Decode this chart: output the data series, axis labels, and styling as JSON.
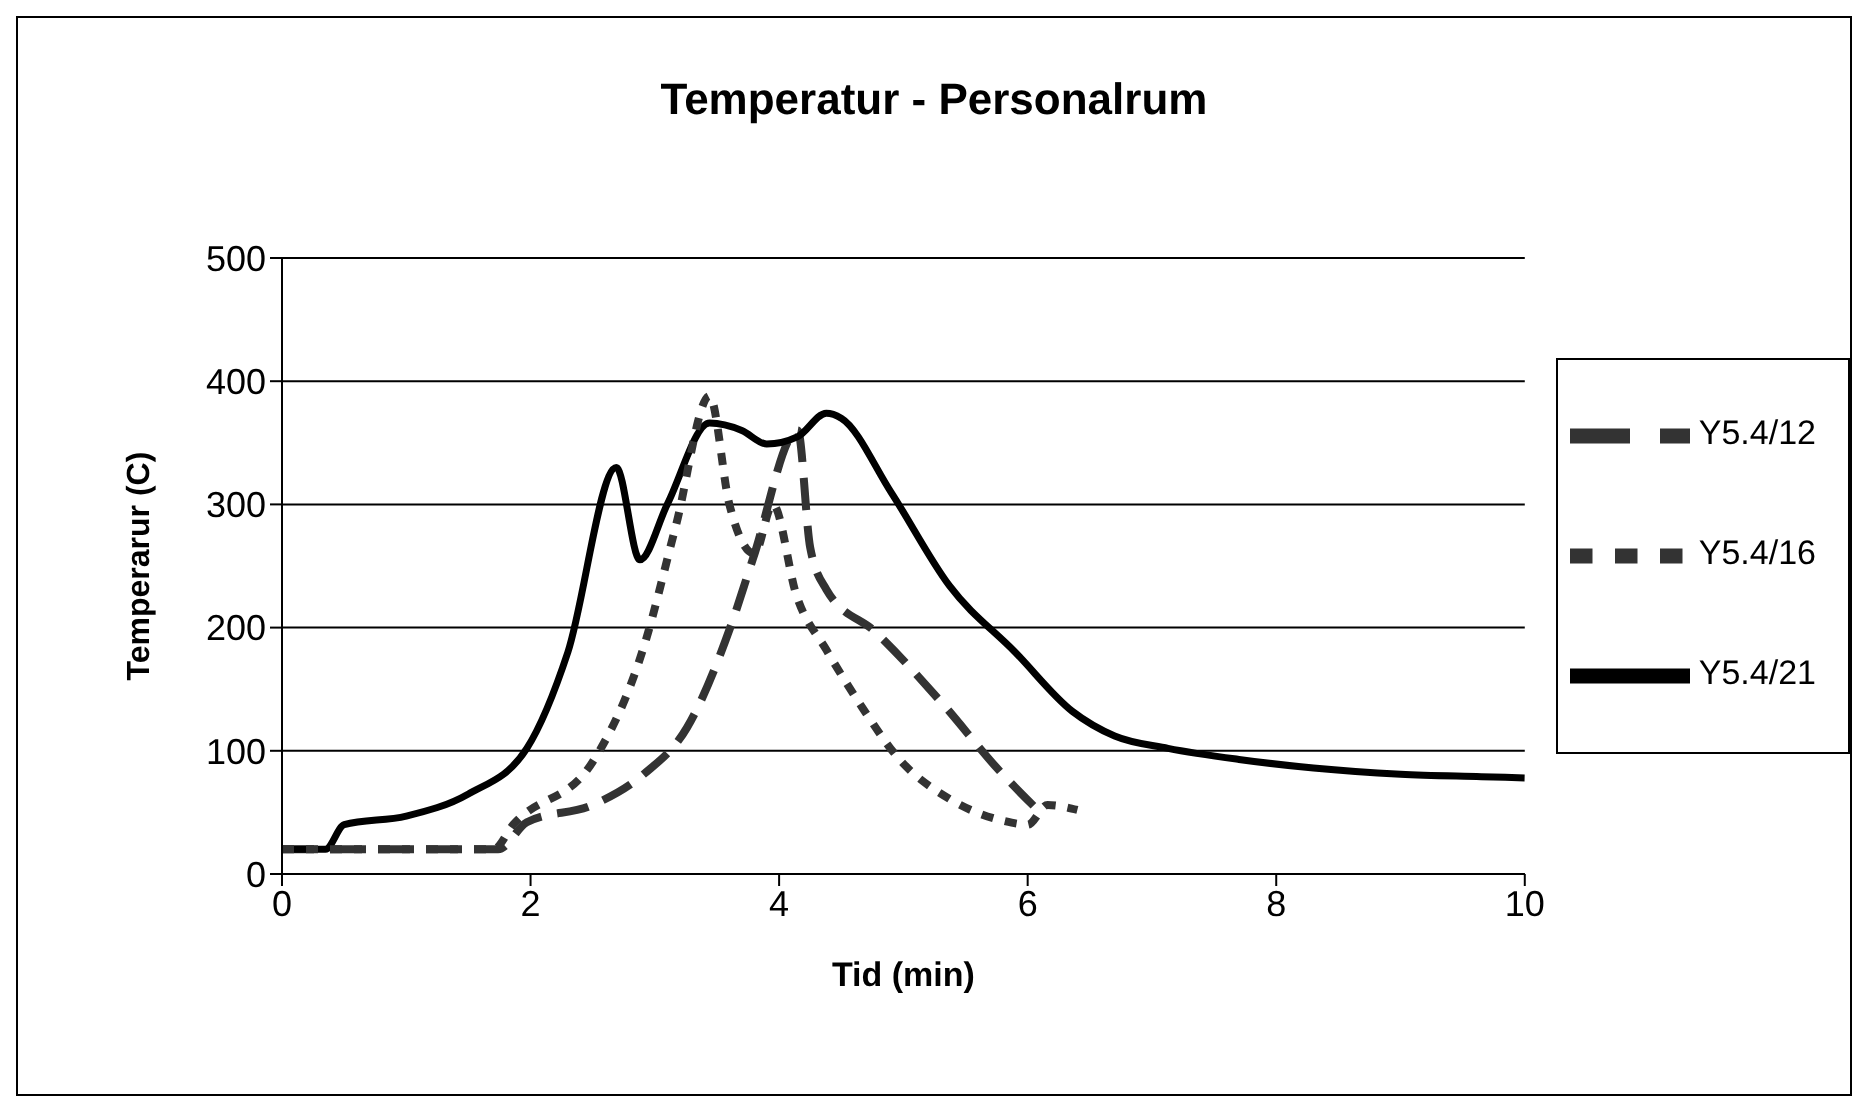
{
  "chart_data": {
    "type": "line",
    "title": "Temperatur - Personalrum",
    "xlabel": "Tid (min)",
    "ylabel": "Temperarur (C)",
    "xlim": [
      0,
      10
    ],
    "xticks": [
      0,
      2,
      4,
      6,
      8,
      10
    ],
    "ylim": [
      0,
      500
    ],
    "yticks": [
      0,
      100,
      200,
      300,
      400,
      500
    ],
    "grid": "y",
    "legend": "right",
    "marker": "none",
    "series": [
      {
        "name": "Y5.4/12",
        "color": "#333333",
        "line_style": "dashed",
        "x": [
          0,
          1.74,
          1.97,
          2.5,
          2.91,
          3.26,
          3.61,
          3.79,
          4.15,
          4.25,
          4.38,
          4.78,
          5.3,
          5.78,
          6.05
        ],
        "values": [
          20,
          20,
          42,
          56,
          81,
          119,
          201,
          256,
          360,
          265,
          231,
          196,
          140,
          83,
          55
        ]
      },
      {
        "name": "Y5.4/21",
        "color": "#000000",
        "line_style": "solid",
        "x": [
          0,
          0.35,
          0.5,
          1.0,
          1.5,
          1.97,
          2.3,
          2.69,
          2.88,
          3.1,
          3.44,
          3.7,
          3.9,
          4.15,
          4.38,
          4.5,
          4.9,
          5.37,
          5.9,
          6.36,
          6.7,
          7.13,
          7.7,
          8.3,
          9.0,
          9.65,
          10
        ],
        "values": [
          20,
          20,
          40,
          47,
          65,
          102,
          180,
          330,
          255,
          300,
          366,
          360,
          349,
          355,
          374,
          370,
          310,
          234,
          180,
          132,
          112,
          102,
          93,
          86,
          81,
          79,
          78
        ]
      },
      {
        "name": "Y5.4/16",
        "color": "#333333",
        "line_style": "dotted",
        "x": [
          0,
          1.7,
          1.86,
          2.5,
          2.91,
          3.17,
          3.44,
          3.6,
          3.8,
          3.95,
          4.14,
          4.38,
          4.67,
          4.96,
          5.37,
          5.81,
          6.0,
          6.16,
          6.4
        ],
        "values": [
          20,
          20,
          40,
          91,
          184,
          283,
          388,
          300,
          260,
          300,
          226,
          182,
          135,
          94,
          61,
          43,
          40,
          56,
          52
        ]
      }
    ]
  }
}
